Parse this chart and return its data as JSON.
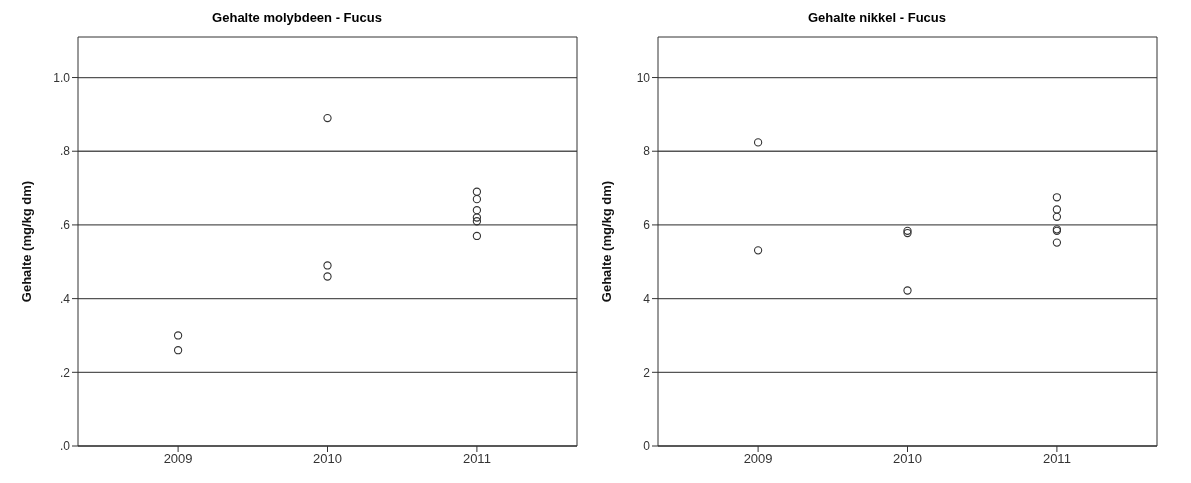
{
  "chart_data": [
    {
      "type": "scatter",
      "title": "Gehalte molybdeen - Fucus",
      "ylabel": "Gehalte (mg/kg dm)",
      "series": [
        {
          "color": "#333333",
          "x": [
            2009,
            2009,
            2010,
            2010,
            2010,
            2011,
            2011,
            2011,
            2011,
            2011,
            2011
          ],
          "values": [
            0.3,
            0.26,
            0.89,
            0.49,
            0.46,
            0.69,
            0.67,
            0.64,
            0.62,
            0.61,
            0.57
          ]
        }
      ],
      "xlim": [
        2008.33,
        2011.67
      ],
      "xticks": [
        2009,
        2010,
        2011
      ],
      "ylim": [
        0,
        1.11
      ],
      "yticks": [
        {
          "value": 0,
          "label": ".0"
        },
        {
          "value": 0.2,
          "label": ".2"
        },
        {
          "value": 0.4,
          "label": ".4"
        },
        {
          "value": 0.6,
          "label": ".6"
        },
        {
          "value": 0.8,
          "label": ".8"
        },
        {
          "value": 1.0,
          "label": "1.0"
        }
      ],
      "grid": "y",
      "legend": false,
      "marker": "circle"
    },
    {
      "type": "scatter",
      "title": "Gehalte nikkel - Fucus",
      "ylabel": "Gehalte (mg/kg dm)",
      "series": [
        {
          "color": "#333333",
          "x": [
            2009,
            2009,
            2010,
            2010,
            2010,
            2011,
            2011,
            2011,
            2011,
            2011,
            2011
          ],
          "values": [
            8.24,
            5.31,
            5.84,
            5.78,
            4.22,
            6.75,
            6.42,
            6.22,
            5.88,
            5.84,
            5.52
          ]
        }
      ],
      "xlim": [
        2008.33,
        2011.67
      ],
      "xticks": [
        2009,
        2010,
        2011
      ],
      "ylim": [
        0,
        11.1
      ],
      "yticks": [
        0,
        2,
        4,
        6,
        8,
        10
      ],
      "grid": "y",
      "legend": false,
      "marker": "circle"
    }
  ]
}
